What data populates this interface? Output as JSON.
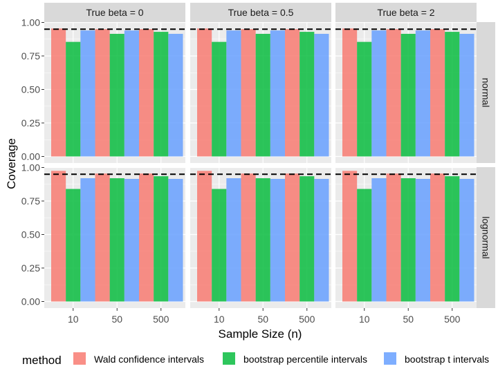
{
  "chart_data": {
    "type": "bar",
    "facet_cols": [
      "True beta = 0",
      "True beta = 0.5",
      "True beta = 2"
    ],
    "facet_rows": [
      "normal",
      "lognormal"
    ],
    "categories": [
      "10",
      "50",
      "500"
    ],
    "xlabel": "Sample Size (n)",
    "ylabel": "Coverage",
    "ylim": [
      0,
      1
    ],
    "yticks": [
      "0.00",
      "0.25",
      "0.50",
      "0.75",
      "1.00"
    ],
    "reference_line": 0.95,
    "legend_title": "method",
    "legend_position": "bottom",
    "grid": true,
    "series": [
      {
        "name": "Wald confidence intervals",
        "color": "#F8766D",
        "values": {
          "normal": [
            0.955,
            0.95,
            0.95
          ],
          "lognormal": [
            0.975,
            0.955,
            0.955
          ]
        }
      },
      {
        "name": "bootstrap percentile intervals",
        "color": "#00BA38",
        "values": {
          "normal": [
            0.855,
            0.915,
            0.93
          ],
          "lognormal": [
            0.84,
            0.92,
            0.935
          ]
        }
      },
      {
        "name": "bootstrap t intervals",
        "color": "#619CFF",
        "values": {
          "normal": [
            0.94,
            0.94,
            0.915
          ],
          "lognormal": [
            0.92,
            0.915,
            0.915
          ]
        }
      }
    ]
  }
}
